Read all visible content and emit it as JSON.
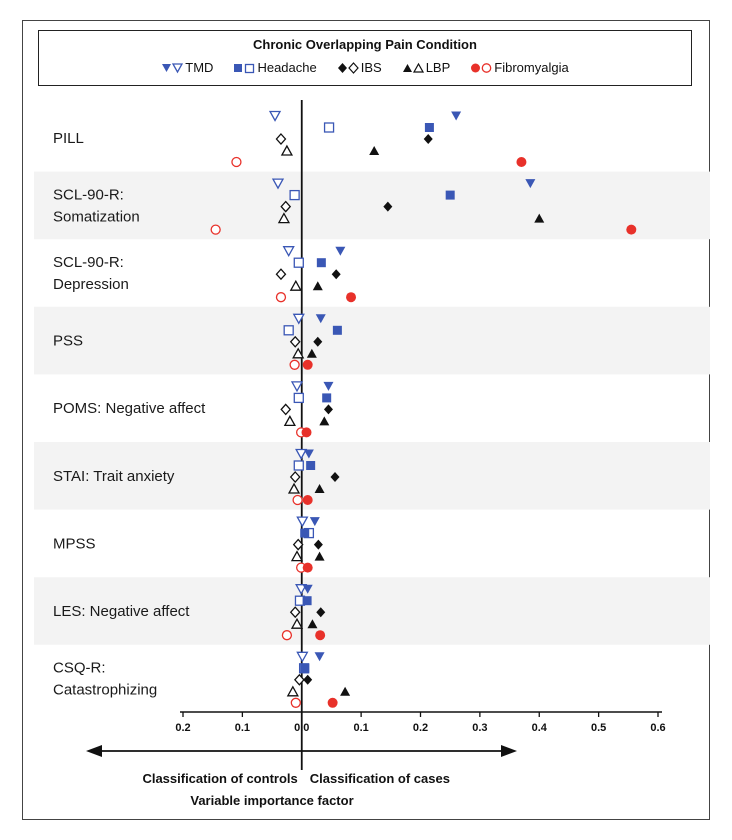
{
  "colors": {
    "tmd": "#3a57b5",
    "headache": "#3a57b5",
    "ibs": "#111111",
    "lbp": "#111111",
    "fibromyalgia": "#e8312a",
    "band": "#f3f3f3"
  },
  "legend": {
    "title": "Chronic Overlapping Pain Condition",
    "items": [
      {
        "key": "tmd",
        "label": "TMD",
        "icon": "triangle-down"
      },
      {
        "key": "headache",
        "label": "Headache",
        "icon": "square"
      },
      {
        "key": "ibs",
        "label": "IBS",
        "icon": "diamond"
      },
      {
        "key": "lbp",
        "label": "LBP",
        "icon": "triangle-up"
      },
      {
        "key": "fibromyalgia",
        "label": "Fibromyalgia",
        "icon": "circle"
      }
    ]
  },
  "chart_data": {
    "type": "scatter",
    "xlim": [
      -0.2,
      0.6
    ],
    "x_ticks": [
      {
        "value": -0.2,
        "label": "0.2"
      },
      {
        "value": -0.1,
        "label": "0.1"
      },
      {
        "value": 0.0,
        "label": "0.0"
      },
      {
        "value": 0.1,
        "label": "0.1"
      },
      {
        "value": 0.2,
        "label": "0.2"
      },
      {
        "value": 0.3,
        "label": "0.3"
      },
      {
        "value": 0.4,
        "label": "0.4"
      },
      {
        "value": 0.5,
        "label": "0.5"
      },
      {
        "value": 0.6,
        "label": "0.6"
      }
    ],
    "left_label": "Classification of controls",
    "right_label": "Classification of cases",
    "xlabel": "Variable importance factor",
    "series_order": [
      "tmd",
      "headache",
      "ibs",
      "lbp",
      "fibromyalgia"
    ],
    "rows": [
      {
        "label": [
          "PILL"
        ],
        "cases": {
          "tmd": 0.26,
          "headache": 0.215,
          "ibs": 0.213,
          "lbp": 0.122,
          "fibromyalgia": 0.37
        },
        "controls": {
          "tmd": -0.045,
          "headache": 0.046,
          "ibs": -0.035,
          "lbp": -0.025,
          "fibromyalgia": -0.11
        }
      },
      {
        "label": [
          "SCL-90-R:",
          "Somatization"
        ],
        "cases": {
          "tmd": 0.385,
          "headache": 0.25,
          "ibs": 0.145,
          "lbp": 0.4,
          "fibromyalgia": 0.555
        },
        "controls": {
          "tmd": -0.04,
          "headache": -0.012,
          "ibs": -0.027,
          "lbp": -0.03,
          "fibromyalgia": -0.145
        }
      },
      {
        "label": [
          "SCL-90-R:",
          "Depression"
        ],
        "cases": {
          "tmd": 0.065,
          "headache": 0.033,
          "ibs": 0.058,
          "lbp": 0.027,
          "fibromyalgia": 0.083
        },
        "controls": {
          "tmd": -0.022,
          "headache": -0.005,
          "ibs": -0.035,
          "lbp": -0.01,
          "fibromyalgia": -0.035
        }
      },
      {
        "label": [
          "PSS"
        ],
        "cases": {
          "tmd": 0.032,
          "headache": 0.06,
          "ibs": 0.027,
          "lbp": 0.017,
          "fibromyalgia": 0.01
        },
        "controls": {
          "tmd": -0.005,
          "headache": -0.022,
          "ibs": -0.011,
          "lbp": -0.006,
          "fibromyalgia": -0.012
        }
      },
      {
        "label": [
          "POMS: Negative affect"
        ],
        "cases": {
          "tmd": 0.045,
          "headache": 0.042,
          "ibs": 0.045,
          "lbp": 0.038,
          "fibromyalgia": 0.008
        },
        "controls": {
          "tmd": -0.008,
          "headache": -0.005,
          "ibs": -0.027,
          "lbp": -0.02,
          "fibromyalgia": -0.001
        }
      },
      {
        "label": [
          "STAI: Trait anxiety"
        ],
        "cases": {
          "tmd": 0.012,
          "headache": 0.015,
          "ibs": 0.056,
          "lbp": 0.03,
          "fibromyalgia": 0.01
        },
        "controls": {
          "tmd": -0.001,
          "headache": -0.005,
          "ibs": -0.011,
          "lbp": -0.013,
          "fibromyalgia": -0.007
        }
      },
      {
        "label": [
          "MPSS"
        ],
        "cases": {
          "tmd": 0.022,
          "headache": 0.005,
          "ibs": 0.028,
          "lbp": 0.03,
          "fibromyalgia": 0.01
        },
        "controls": {
          "tmd": 0.001,
          "headache": 0.012,
          "ibs": -0.006,
          "lbp": -0.008,
          "fibromyalgia": -0.001
        }
      },
      {
        "label": [
          "LES: Negative affect"
        ],
        "cases": {
          "tmd": 0.01,
          "headache": 0.009,
          "ibs": 0.032,
          "lbp": 0.018,
          "fibromyalgia": 0.031
        },
        "controls": {
          "tmd": -0.001,
          "headache": -0.003,
          "ibs": -0.011,
          "lbp": -0.008,
          "fibromyalgia": -0.025
        }
      },
      {
        "label": [
          "CSQ-R:",
          "Catastrophizing"
        ],
        "cases": {
          "tmd": 0.03,
          "headache": 0.005,
          "ibs": 0.01,
          "lbp": 0.073,
          "fibromyalgia": 0.052
        },
        "controls": {
          "tmd": 0.001,
          "headache": 0.004,
          "ibs": -0.004,
          "lbp": -0.015,
          "fibromyalgia": -0.01
        }
      }
    ]
  }
}
